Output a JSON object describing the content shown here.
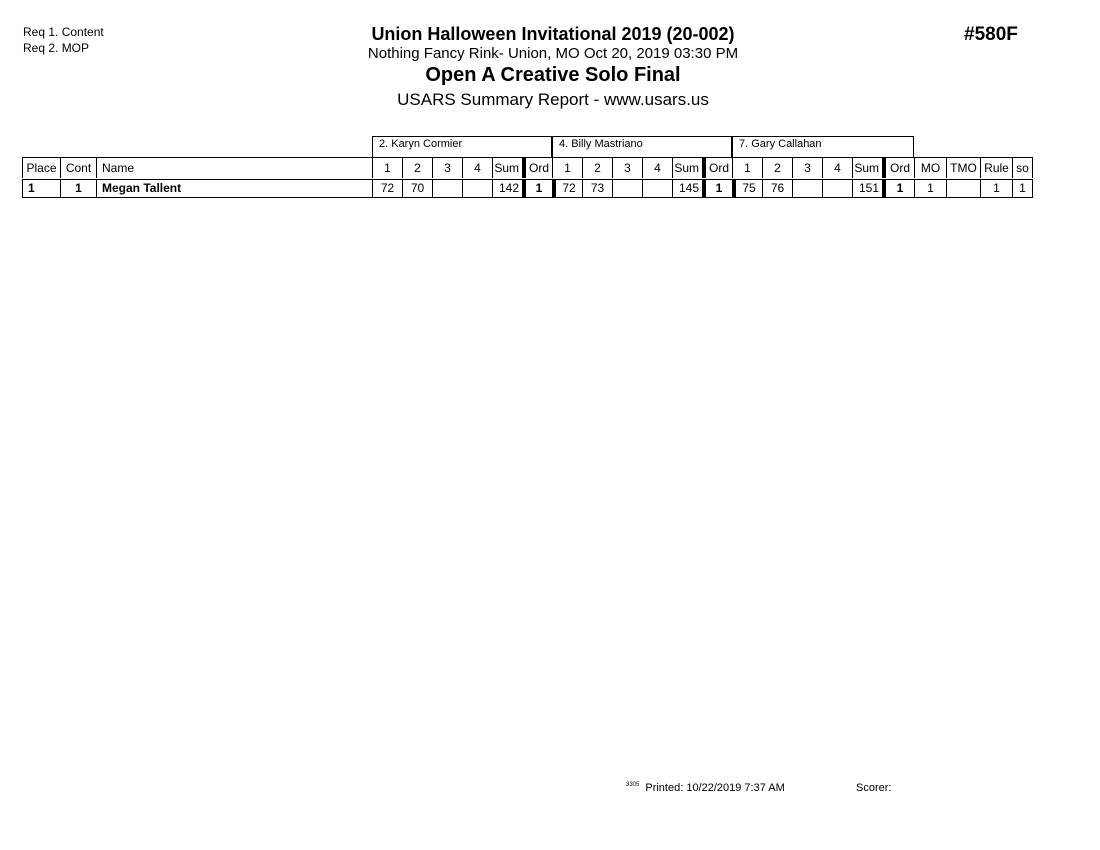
{
  "requirements": [
    "Req 1.  Content",
    "Req 2.  MOP"
  ],
  "header": {
    "title": "Union Halloween Invitational 2019 (20-002)",
    "subtitle": "Nothing Fancy Rink- Union, MO  Oct 20, 2019  03:30 PM",
    "event": "Open A Creative Solo Final",
    "report": "USARS Summary Report - www.usars.us",
    "code": "#580F"
  },
  "table": {
    "fixed_headers": [
      "Place",
      "Cont",
      "Name"
    ],
    "judges": [
      {
        "name": "2.  Karyn Cormier",
        "cols": [
          "1",
          "2",
          "3",
          "4",
          "Sum",
          "Ord"
        ]
      },
      {
        "name": "4.  Billy Mastriano",
        "cols": [
          "1",
          "2",
          "3",
          "4",
          "Sum",
          "Ord"
        ]
      },
      {
        "name": "7.  Gary Callahan",
        "cols": [
          "1",
          "2",
          "3",
          "4",
          "Sum",
          "Ord"
        ]
      }
    ],
    "tail_headers": [
      "MO",
      "TMO",
      "Rule",
      "so"
    ],
    "rows": [
      {
        "place": "1",
        "cont": "1",
        "name": "Megan Tallent",
        "scores": [
          [
            "72",
            "70",
            "",
            "",
            "142",
            "1"
          ],
          [
            "72",
            "73",
            "",
            "",
            "145",
            "1"
          ],
          [
            "75",
            "76",
            "",
            "",
            "151",
            "1"
          ]
        ],
        "tail": [
          "1",
          "",
          "1",
          "1"
        ]
      }
    ]
  },
  "footer": {
    "version": "3305",
    "printed": "Printed:  10/22/2019  7:37 AM",
    "scorer": "Scorer:"
  }
}
